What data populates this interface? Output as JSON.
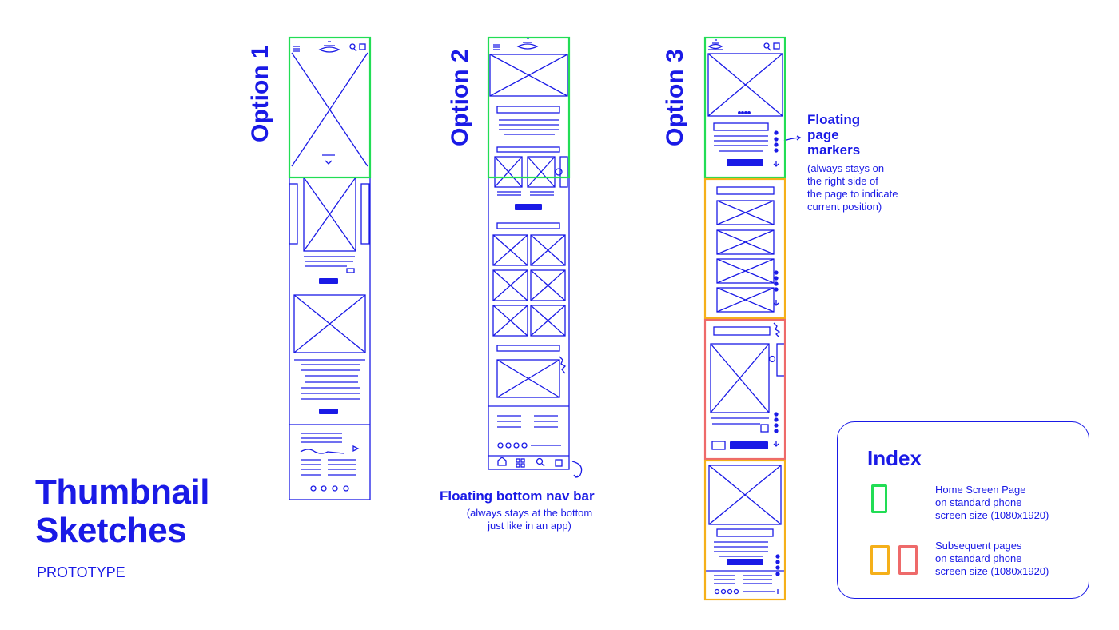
{
  "options": [
    "Option 1",
    "Option 2",
    "Option 3"
  ],
  "title_line1": "Thumbnail",
  "title_line2": "Sketches",
  "subtitle": "PROTOTYPE",
  "annotations": {
    "nav_bar": {
      "title": "Floating bottom nav bar",
      "sub_line1": "(always stays at the bottom",
      "sub_line2": "just like in an app)"
    },
    "page_markers": {
      "title_line1": "Floating",
      "title_line2": "page",
      "title_line3": "markers",
      "sub_line1": "(always stays on",
      "sub_line2": "the right side of",
      "sub_line3": "the page to indicate",
      "sub_line4": "current position)"
    }
  },
  "index": {
    "title": "Index",
    "home": {
      "line1": "Home Screen Page",
      "line2": "on standard phone",
      "line3": "screen size (1080x1920)"
    },
    "subsequent": {
      "line1": "Subsequent pages",
      "line2": "on standard phone",
      "line3": "screen size (1080x1920)"
    }
  },
  "colors": {
    "ink": "#1a1ae6",
    "home_frame": "#22dd55",
    "subsequent_frame_orange": "#f5b01a",
    "subsequent_frame_red": "#ee6a6a"
  }
}
